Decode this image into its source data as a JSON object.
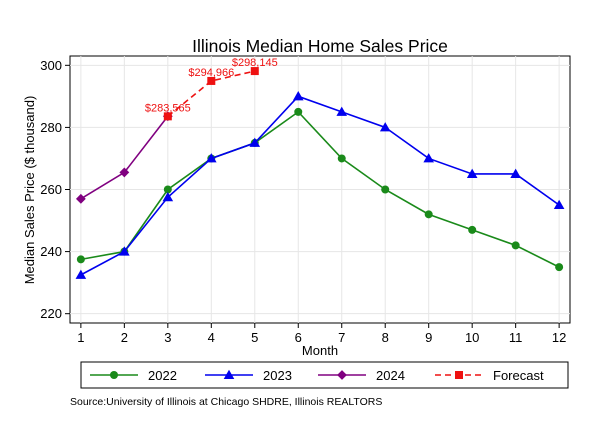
{
  "chart_data": {
    "type": "line",
    "title": "Illinois Median Home Sales Price",
    "xlabel": "Month",
    "ylabel": "Median Sales Price ($ thousand)",
    "x": [
      1,
      2,
      3,
      4,
      5,
      6,
      7,
      8,
      9,
      10,
      11,
      12
    ],
    "xlim": [
      0.75,
      12.25
    ],
    "ylim": [
      217,
      303
    ],
    "yticks": [
      220,
      240,
      260,
      280,
      300
    ],
    "grid": true,
    "legend_position": "bottom",
    "series": [
      {
        "name": "2022",
        "color": "#1a8a1a",
        "marker": "circle",
        "x": [
          1,
          2,
          3,
          4,
          5,
          6,
          7,
          8,
          9,
          10,
          11,
          12
        ],
        "values": [
          237.5,
          240,
          260,
          270,
          275,
          285,
          270,
          260,
          252,
          247,
          242,
          235
        ]
      },
      {
        "name": "2023",
        "color": "#0000ee",
        "marker": "triangle",
        "x": [
          1,
          2,
          3,
          4,
          5,
          6,
          7,
          8,
          9,
          10,
          11,
          12
        ],
        "values": [
          232.5,
          240,
          257.5,
          270,
          275,
          290,
          285,
          280,
          270,
          265,
          265,
          255
        ]
      },
      {
        "name": "2024",
        "color": "#800080",
        "marker": "diamond",
        "x": [
          1,
          2,
          3
        ],
        "values": [
          257,
          265.5,
          283.6
        ]
      },
      {
        "name": "Forecast",
        "color": "#ee1111",
        "marker": "square",
        "dashed": true,
        "x": [
          3,
          4,
          5
        ],
        "values": [
          283.565,
          294.966,
          298.145
        ],
        "labels": [
          "$283,565",
          "$294,966",
          "$298,145"
        ]
      }
    ]
  },
  "source_text": "Source:University of Illinois at Chicago SHDRE, Illinois REALTORS"
}
